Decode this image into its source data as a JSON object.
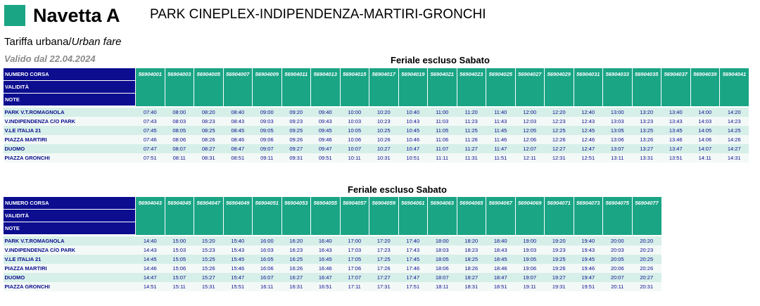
{
  "header": {
    "line_name": "Navetta A",
    "route": "PARK CINEPLEX-INDIPENDENZA-MARTIRI-GRONCHI",
    "fare_it": "Tariffa urbana/",
    "fare_en": "Urban fare",
    "valid_from": "Valido dal 22.04.2024"
  },
  "labels": {
    "run_number": "NUMERO CORSA",
    "validity": "VALIDITÀ",
    "notes": "NOTE"
  },
  "colors": {
    "brand_green": "#1aa585",
    "header_blue": "#0c0d8f",
    "row_even": "#d6efe9",
    "row_odd": "#f3f9f7"
  },
  "stops": [
    "PARK V.T.ROMAGNOLA",
    "V.INDIPENDENZA C/O PARK",
    "V.LE ITALIA 21",
    "PIAZZA MARTIRI",
    "DUOMO",
    "PIAZZA GRONCHI"
  ],
  "sections": [
    {
      "title": "Feriale escluso Sabato",
      "runs": [
        "56904001",
        "56904003",
        "56904005",
        "56904007",
        "56904009",
        "56904011",
        "56904013",
        "56904015",
        "56904017",
        "56904019",
        "56904021",
        "56904023",
        "56904025",
        "56904027",
        "56904029",
        "56904031",
        "56904033",
        "56904035",
        "56904037",
        "56904039",
        "56904041"
      ],
      "times": [
        [
          "07:40",
          "08:00",
          "08:20",
          "08:40",
          "09:00",
          "09:20",
          "09:40",
          "10:00",
          "10:20",
          "10:40",
          "11:00",
          "11:20",
          "11:40",
          "12:00",
          "12:20",
          "12:40",
          "13:00",
          "13:20",
          "13:40",
          "14:00",
          "14:20"
        ],
        [
          "07:43",
          "08:03",
          "08:23",
          "08:43",
          "09:03",
          "09:23",
          "09:43",
          "10:03",
          "10:23",
          "10:43",
          "11:03",
          "11:23",
          "11:43",
          "12:03",
          "12:23",
          "12:43",
          "13:03",
          "13:23",
          "13:43",
          "14:03",
          "14:23"
        ],
        [
          "07:45",
          "08:05",
          "08:25",
          "08:45",
          "09:05",
          "09:25",
          "09:45",
          "10:05",
          "10:25",
          "10:45",
          "11:05",
          "11:25",
          "11:45",
          "12:05",
          "12:25",
          "12:45",
          "13:05",
          "13:25",
          "13:45",
          "14:05",
          "14:25"
        ],
        [
          "07:46",
          "08:06",
          "08:26",
          "08:46",
          "09:06",
          "09:26",
          "09:46",
          "10:06",
          "10:26",
          "10:46",
          "11:06",
          "11:26",
          "11:46",
          "12:06",
          "12:26",
          "12:46",
          "13:06",
          "13:26",
          "13:46",
          "14:06",
          "14:26"
        ],
        [
          "07:47",
          "08:07",
          "08:27",
          "08:47",
          "09:07",
          "09:27",
          "09:47",
          "10:07",
          "10:27",
          "10:47",
          "11:07",
          "11:27",
          "11:47",
          "12:07",
          "12:27",
          "12:47",
          "13:07",
          "13:27",
          "13:47",
          "14:07",
          "14:27"
        ],
        [
          "07:51",
          "08:11",
          "08:31",
          "08:51",
          "09:11",
          "09:31",
          "09:51",
          "10:11",
          "10:31",
          "10:51",
          "11:11",
          "11:31",
          "11:51",
          "12:11",
          "12:31",
          "12:51",
          "13:11",
          "13:31",
          "13:51",
          "14:11",
          "14:31"
        ]
      ]
    },
    {
      "title": "Feriale escluso Sabato",
      "runs": [
        "56904043",
        "56904045",
        "56904047",
        "56904049",
        "56904051",
        "56904053",
        "56904055",
        "56904057",
        "56904059",
        "56904061",
        "56904063",
        "56904065",
        "56904067",
        "56904069",
        "56904071",
        "56904073",
        "56904075",
        "56904077"
      ],
      "times": [
        [
          "14:40",
          "15:00",
          "15:20",
          "15:40",
          "16:00",
          "16:20",
          "16:40",
          "17:00",
          "17:20",
          "17:40",
          "18:00",
          "18:20",
          "18:40",
          "19:00",
          "19:20",
          "19:40",
          "20:00",
          "20:20"
        ],
        [
          "14:43",
          "15:03",
          "15:23",
          "15:43",
          "16:03",
          "16:23",
          "16:43",
          "17:03",
          "17:23",
          "17:43",
          "18:03",
          "18:23",
          "18:43",
          "19:03",
          "19:23",
          "19:43",
          "20:03",
          "20:23"
        ],
        [
          "14:45",
          "15:05",
          "15:25",
          "15:45",
          "16:05",
          "16:25",
          "16:45",
          "17:05",
          "17:25",
          "17:45",
          "18:05",
          "18:25",
          "18:45",
          "19:05",
          "19:25",
          "19:45",
          "20:05",
          "20:25"
        ],
        [
          "14:46",
          "15:06",
          "15:26",
          "15:46",
          "16:06",
          "16:26",
          "16:46",
          "17:06",
          "17:26",
          "17:46",
          "18:06",
          "18:26",
          "18:46",
          "19:06",
          "19:26",
          "19:46",
          "20:06",
          "20:26"
        ],
        [
          "14:47",
          "15:07",
          "15:27",
          "15:47",
          "16:07",
          "16:27",
          "16:47",
          "17:07",
          "17:27",
          "17:47",
          "18:07",
          "18:27",
          "18:47",
          "19:07",
          "19:27",
          "19:47",
          "20:07",
          "20:27"
        ],
        [
          "14:51",
          "15:11",
          "15:31",
          "15:51",
          "16:11",
          "16:31",
          "16:51",
          "17:11",
          "17:31",
          "17:51",
          "18:11",
          "18:31",
          "18:51",
          "19:11",
          "19:31",
          "19:51",
          "20:11",
          "20:31"
        ]
      ]
    }
  ]
}
